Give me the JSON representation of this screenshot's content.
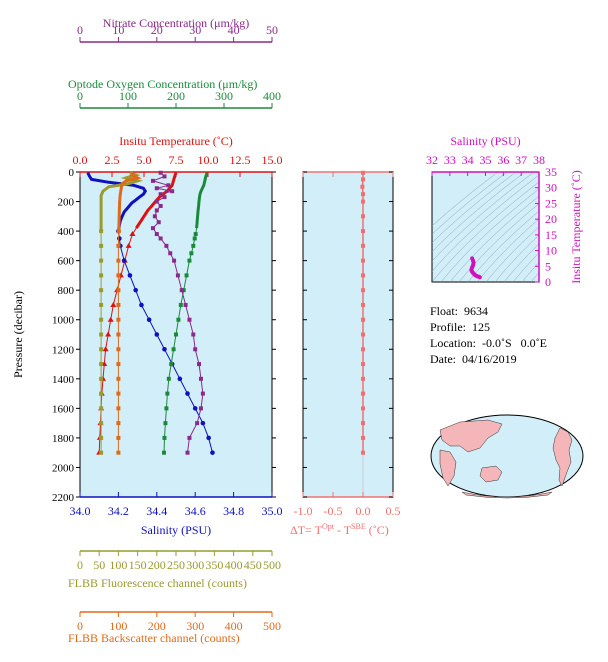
{
  "info": {
    "float": "Float:  9634",
    "profile": "Profile:  125",
    "location": "Location:  -0.0˚S   0.0˚E",
    "date": "Date:  04/16/2019"
  },
  "colors": {
    "nitrate": "#8b2a8b",
    "oxygen": "#1a8a3a",
    "temperature": "#e01010",
    "salinity": "#1010c0",
    "fluorescence": "#9a9a30",
    "backscatter": "#e06a1a",
    "dt": "#f07070",
    "ts_axis": "#d010c0",
    "panel_bg": "#d2eef8"
  },
  "chart_data": [
    {
      "type": "line",
      "ylabel": "Pressure (decibar)",
      "ylim": [
        2200,
        0
      ],
      "yticks": [
        "0",
        "200",
        "400",
        "600",
        "800",
        "1000",
        "1200",
        "1400",
        "1600",
        "1800",
        "2000",
        "2200"
      ],
      "axes": [
        {
          "key": "nitrate",
          "label": "Nitrate Concentration (μm/kg)",
          "range": [
            0,
            50
          ],
          "ticks": [
            "0",
            "10",
            "20",
            "30",
            "40",
            "50"
          ]
        },
        {
          "key": "oxygen",
          "label": "Optode Oxygen Concentration (μm/kg)",
          "range": [
            0,
            400
          ],
          "ticks": [
            "0",
            "100",
            "200",
            "300",
            "400"
          ]
        },
        {
          "key": "temperature",
          "label": "Insitu Temperature (˚C)",
          "range": [
            0,
            15
          ],
          "ticks": [
            "0.0",
            "2.5",
            "5.0",
            "7.5",
            "10.0",
            "12.5",
            "15.0"
          ]
        },
        {
          "key": "salinity",
          "label": "Salinity (PSU)",
          "range": [
            34.0,
            35.0
          ],
          "ticks": [
            "34.0",
            "34.2",
            "34.4",
            "34.6",
            "34.8",
            "35.0"
          ]
        },
        {
          "key": "fluorescence",
          "label": "FLBB Fluorescence channel (counts)",
          "range": [
            0,
            500
          ],
          "ticks": [
            "0",
            "50",
            "100",
            "150",
            "200",
            "250",
            "300",
            "350",
            "400",
            "450",
            "500"
          ]
        },
        {
          "key": "backscatter",
          "label": "FLBB Backscatter channel (counts)",
          "range": [
            0,
            500
          ],
          "ticks": [
            "0",
            "100",
            "200",
            "300",
            "400",
            "500"
          ]
        }
      ],
      "series": [
        {
          "key": "temperature",
          "axis": "temperature",
          "marker": "triangle",
          "points": [
            [
              5,
              7.5
            ],
            [
              30,
              7.4
            ],
            [
              60,
              7.3
            ],
            [
              90,
              7.2
            ],
            [
              110,
              7.0
            ],
            [
              130,
              6.8
            ],
            [
              150,
              6.5
            ],
            [
              170,
              6.2
            ],
            [
              200,
              5.9
            ],
            [
              230,
              5.6
            ],
            [
              260,
              5.3
            ],
            [
              300,
              5.0
            ],
            [
              340,
              4.7
            ],
            [
              380,
              4.4
            ],
            [
              420,
              4.1
            ],
            [
              500,
              3.8
            ],
            [
              600,
              3.5
            ],
            [
              700,
              3.2
            ],
            [
              800,
              2.9
            ],
            [
              900,
              2.6
            ],
            [
              1000,
              2.4
            ],
            [
              1100,
              2.2
            ],
            [
              1200,
              2.0
            ],
            [
              1300,
              1.9
            ],
            [
              1400,
              1.8
            ],
            [
              1500,
              1.7
            ],
            [
              1600,
              1.65
            ],
            [
              1700,
              1.6
            ],
            [
              1800,
              1.55
            ],
            [
              1900,
              1.5
            ]
          ]
        },
        {
          "key": "salinity",
          "axis": "salinity",
          "marker": "circle",
          "points": [
            [
              5,
              34.04
            ],
            [
              30,
              34.05
            ],
            [
              50,
              34.06
            ],
            [
              70,
              34.15
            ],
            [
              90,
              34.28
            ],
            [
              110,
              34.33
            ],
            [
              130,
              34.34
            ],
            [
              150,
              34.33
            ],
            [
              170,
              34.31
            ],
            [
              190,
              34.29
            ],
            [
              210,
              34.27
            ],
            [
              240,
              34.25
            ],
            [
              270,
              34.23
            ],
            [
              300,
              34.22
            ],
            [
              330,
              34.21
            ],
            [
              360,
              34.205
            ],
            [
              400,
              34.2
            ],
            [
              450,
              34.205
            ],
            [
              500,
              34.21
            ],
            [
              600,
              34.23
            ],
            [
              700,
              34.26
            ],
            [
              800,
              34.29
            ],
            [
              900,
              34.32
            ],
            [
              1000,
              34.36
            ],
            [
              1100,
              34.4
            ],
            [
              1200,
              34.44
            ],
            [
              1300,
              34.48
            ],
            [
              1400,
              34.52
            ],
            [
              1500,
              34.56
            ],
            [
              1600,
              34.6
            ],
            [
              1700,
              34.64
            ],
            [
              1800,
              34.67
            ],
            [
              1900,
              34.69
            ]
          ]
        },
        {
          "key": "oxygen",
          "axis": "oxygen",
          "marker": "square",
          "points": [
            [
              5,
              265
            ],
            [
              30,
              262
            ],
            [
              60,
              260
            ],
            [
              90,
              258
            ],
            [
              110,
              255
            ],
            [
              130,
              252
            ],
            [
              150,
              250
            ],
            [
              170,
              249
            ],
            [
              200,
              248
            ],
            [
              230,
              247
            ],
            [
              260,
              246
            ],
            [
              300,
              245
            ],
            [
              340,
              244
            ],
            [
              380,
              243
            ],
            [
              420,
              241
            ],
            [
              450,
              239
            ],
            [
              500,
              236
            ],
            [
              550,
              232
            ],
            [
              600,
              228
            ],
            [
              700,
              222
            ],
            [
              800,
              216
            ],
            [
              900,
              210
            ],
            [
              1000,
              205
            ],
            [
              1100,
              200
            ],
            [
              1200,
              195
            ],
            [
              1300,
              190
            ],
            [
              1400,
              185
            ],
            [
              1500,
              182
            ],
            [
              1600,
              180
            ],
            [
              1700,
              178
            ],
            [
              1800,
              176
            ],
            [
              1900,
              175
            ]
          ]
        },
        {
          "key": "nitrate",
          "axis": "nitrate",
          "marker": "square",
          "points": [
            [
              5,
              21
            ],
            [
              30,
              22
            ],
            [
              60,
              19
            ],
            [
              90,
              23
            ],
            [
              110,
              20
            ],
            [
              130,
              24
            ],
            [
              150,
              21
            ],
            [
              170,
              22
            ],
            [
              200,
              20
            ],
            [
              230,
              21
            ],
            [
              260,
              20
            ],
            [
              300,
              19.5
            ],
            [
              340,
              20.5
            ],
            [
              380,
              19
            ],
            [
              420,
              20
            ],
            [
              450,
              21
            ],
            [
              500,
              22.5
            ],
            [
              550,
              23.5
            ],
            [
              600,
              24.5
            ],
            [
              700,
              25.5
            ],
            [
              800,
              26.5
            ],
            [
              900,
              27.5
            ],
            [
              1000,
              28.5
            ],
            [
              1100,
              29.5
            ],
            [
              1200,
              30
            ],
            [
              1300,
              31
            ],
            [
              1400,
              31.5
            ],
            [
              1500,
              32
            ],
            [
              1600,
              31.5
            ],
            [
              1700,
              30.5
            ],
            [
              1800,
              28.5
            ],
            [
              1900,
              28
            ]
          ]
        },
        {
          "key": "fluorescence",
          "axis": "fluorescence",
          "marker": "square",
          "points": [
            [
              5,
              130
            ],
            [
              20,
              145
            ],
            [
              40,
              120
            ],
            [
              60,
              150
            ],
            [
              80,
              125
            ],
            [
              100,
              75
            ],
            [
              130,
              60
            ],
            [
              160,
              55
            ],
            [
              200,
              55
            ],
            [
              260,
              55
            ],
            [
              300,
              55
            ],
            [
              350,
              55
            ],
            [
              400,
              55
            ],
            [
              500,
              55
            ],
            [
              600,
              55
            ],
            [
              700,
              55
            ],
            [
              800,
              55
            ],
            [
              900,
              55
            ],
            [
              1000,
              55
            ],
            [
              1100,
              55
            ],
            [
              1200,
              55
            ],
            [
              1300,
              55
            ],
            [
              1400,
              55
            ],
            [
              1500,
              55
            ],
            [
              1600,
              55
            ],
            [
              1700,
              55
            ],
            [
              1800,
              55
            ],
            [
              1900,
              55
            ]
          ]
        },
        {
          "key": "backscatter",
          "axis": "backscatter",
          "marker": "square",
          "points": [
            [
              5,
              140
            ],
            [
              20,
              135
            ],
            [
              40,
              150
            ],
            [
              60,
              120
            ],
            [
              80,
              110
            ],
            [
              100,
              108
            ],
            [
              150,
              105
            ],
            [
              200,
              103
            ],
            [
              300,
              102
            ],
            [
              400,
              101
            ],
            [
              500,
              100
            ],
            [
              600,
              100
            ],
            [
              700,
              100
            ],
            [
              800,
              100
            ],
            [
              900,
              100
            ],
            [
              1000,
              100
            ],
            [
              1100,
              100
            ],
            [
              1200,
              100
            ],
            [
              1300,
              100
            ],
            [
              1400,
              100
            ],
            [
              1500,
              100
            ],
            [
              1600,
              100
            ],
            [
              1700,
              100
            ],
            [
              1800,
              100
            ],
            [
              1900,
              100
            ]
          ]
        }
      ]
    },
    {
      "type": "line",
      "xlabel": "ΔT= T<sup>Opt</sup> - T<sup>SBE</sup> (˚C)",
      "xlabel_parts": [
        "ΔT= T",
        "Opt",
        " - T",
        "SBE",
        " (˚C)"
      ],
      "xlim": [
        -1.0,
        0.5
      ],
      "xticks": [
        "-1.0",
        "-0.5",
        "0.0",
        "0.5"
      ],
      "ylim": [
        2200,
        0
      ],
      "series": [
        {
          "key": "dt",
          "points": [
            [
              5,
              0.0
            ],
            [
              50,
              0.0
            ],
            [
              100,
              -0.01
            ],
            [
              150,
              0.0
            ],
            [
              200,
              0.0
            ],
            [
              300,
              0.0
            ],
            [
              400,
              0.0
            ],
            [
              500,
              0.0
            ],
            [
              600,
              0.0
            ],
            [
              700,
              0.0
            ],
            [
              800,
              0.0
            ],
            [
              900,
              0.0
            ],
            [
              1000,
              0.0
            ],
            [
              1100,
              0.0
            ],
            [
              1200,
              0.0
            ],
            [
              1300,
              0.0
            ],
            [
              1400,
              0.0
            ],
            [
              1500,
              0.0
            ],
            [
              1600,
              0.0
            ],
            [
              1700,
              0.0
            ],
            [
              1800,
              0.0
            ],
            [
              1900,
              0.0
            ]
          ]
        }
      ]
    },
    {
      "type": "scatter",
      "title": "Salinity (PSU)",
      "ylabel": "Insitu Temperature (˚C)",
      "xlim": [
        32,
        38
      ],
      "ylim": [
        0,
        35
      ],
      "xticks": [
        "32",
        "33",
        "34",
        "35",
        "36",
        "37",
        "38"
      ],
      "yticks": [
        "0",
        "5",
        "10",
        "15",
        "20",
        "25",
        "30",
        "35"
      ],
      "points": [
        [
          34.25,
          7.5
        ],
        [
          34.3,
          6.8
        ],
        [
          34.33,
          6.2
        ],
        [
          34.32,
          5.8
        ],
        [
          34.3,
          5.3
        ],
        [
          34.27,
          4.9
        ],
        [
          34.24,
          4.5
        ],
        [
          34.22,
          4.1
        ],
        [
          34.21,
          3.8
        ],
        [
          34.23,
          3.5
        ],
        [
          34.26,
          3.2
        ],
        [
          34.3,
          2.9
        ],
        [
          34.36,
          2.5
        ],
        [
          34.42,
          2.2
        ],
        [
          34.48,
          2.0
        ],
        [
          34.55,
          1.8
        ],
        [
          34.62,
          1.7
        ],
        [
          34.68,
          1.5
        ]
      ]
    }
  ]
}
